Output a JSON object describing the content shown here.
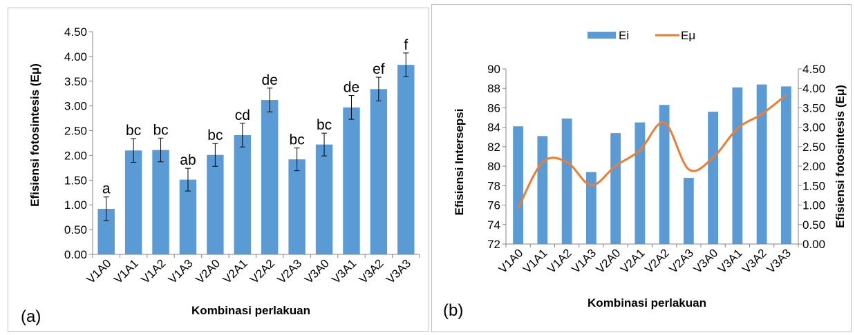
{
  "chart_data": [
    {
      "panel_label": "(a)",
      "type": "bar",
      "categories": [
        "V1A0",
        "V1A1",
        "V1A2",
        "V1A3",
        "V2A0",
        "V2A1",
        "V2A2",
        "V2A3",
        "V3A0",
        "V3A1",
        "V3A2",
        "V3A3"
      ],
      "values": [
        0.92,
        2.1,
        2.11,
        1.51,
        2.01,
        2.41,
        3.12,
        1.92,
        2.22,
        2.97,
        3.34,
        3.83
      ],
      "errors": [
        0.24,
        0.24,
        0.24,
        0.23,
        0.23,
        0.24,
        0.24,
        0.23,
        0.23,
        0.24,
        0.24,
        0.24
      ],
      "significance": [
        "a",
        "bc",
        "bc",
        "ab",
        "bc",
        "cd",
        "de",
        "bc",
        "bc",
        "de",
        "ef",
        "f"
      ],
      "xlabel": "Kombinasi perlakuan",
      "ylabel": "Efisiensi fotosintesis (Eμ)",
      "ylim": [
        0,
        4.5
      ],
      "yticks": [
        "0.00",
        "0.50",
        "1.00",
        "1.50",
        "2.00",
        "2.50",
        "3.00",
        "3.50",
        "4.00",
        "4.50"
      ],
      "grid": false,
      "bar_color": "#5b9bd5"
    },
    {
      "panel_label": "(b)",
      "type": "bar",
      "categories": [
        "V1A0",
        "V1A1",
        "V1A2",
        "V1A3",
        "V2A0",
        "V2A1",
        "V2A2",
        "V2A3",
        "V3A0",
        "V3A1",
        "V3A2",
        "V3A3"
      ],
      "series": [
        {
          "name": "Ei",
          "type": "bar",
          "axis": "left",
          "values": [
            84.1,
            83.1,
            84.9,
            79.4,
            83.4,
            84.5,
            86.3,
            78.8,
            85.6,
            88.1,
            88.4,
            88.2
          ],
          "color": "#5b9bd5"
        },
        {
          "name": "Eμ",
          "type": "line",
          "axis": "right",
          "smooth": true,
          "values": [
            0.92,
            2.1,
            2.11,
            1.51,
            2.01,
            2.41,
            3.12,
            1.92,
            2.22,
            2.97,
            3.34,
            3.83
          ],
          "color": "#ed7d31"
        }
      ],
      "xlabel": "Kombinasi perlakuan",
      "ylabel_left": "Efisiensi Intersepsi",
      "ylabel_right": "Efisiensi fotosintesis (Eμ)",
      "ylim_left": [
        72,
        90
      ],
      "ylim_right": [
        0,
        4.5
      ],
      "yticks_left": [
        "72",
        "74",
        "76",
        "78",
        "80",
        "82",
        "84",
        "86",
        "88",
        "90"
      ],
      "yticks_right": [
        "0.00",
        "0.50",
        "1.00",
        "1.50",
        "2.00",
        "2.50",
        "3.00",
        "3.50",
        "4.00",
        "4.50"
      ],
      "legend": "top",
      "grid": false
    }
  ]
}
